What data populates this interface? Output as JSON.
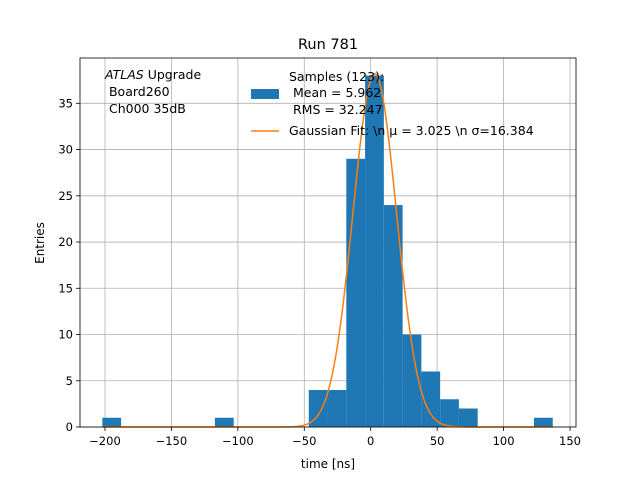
{
  "chart_data": {
    "type": "bar",
    "title": "Run 781",
    "xlabel": "time [ns]",
    "ylabel": "Entries",
    "xlim": [
      -218.8,
      154.5
    ],
    "ylim": [
      0,
      39.9
    ],
    "grid": true,
    "xticks": [
      -200,
      -150,
      -100,
      -50,
      0,
      50,
      100,
      150
    ],
    "yticks": [
      0,
      5,
      10,
      15,
      20,
      25,
      30,
      35
    ],
    "bin_edges": [
      -202,
      137
    ],
    "bin_count": 24,
    "counts": [
      1,
      0,
      0,
      0,
      0,
      0,
      1,
      0,
      0,
      0,
      0,
      4,
      4,
      29,
      38,
      24,
      10,
      6,
      3,
      2,
      0,
      0,
      0,
      1
    ],
    "bar_color": "#1f77b4",
    "fit": {
      "mu": 3.025,
      "sigma": 16.384,
      "amplitude": 38.2,
      "color": "#ff7f0e"
    },
    "annotation": {
      "italic": "ATLAS",
      "line1": " Upgrade",
      "line2": " Board260",
      "line3": " Ch000 35dB"
    },
    "legend": {
      "placement": "top-right",
      "hist": [
        "Samples (123):",
        " Mean = 5.962",
        " RMS = 32.247"
      ],
      "fit": "Gaussian Fit: \\n μ = 3.025 \\n σ=16.384"
    }
  }
}
